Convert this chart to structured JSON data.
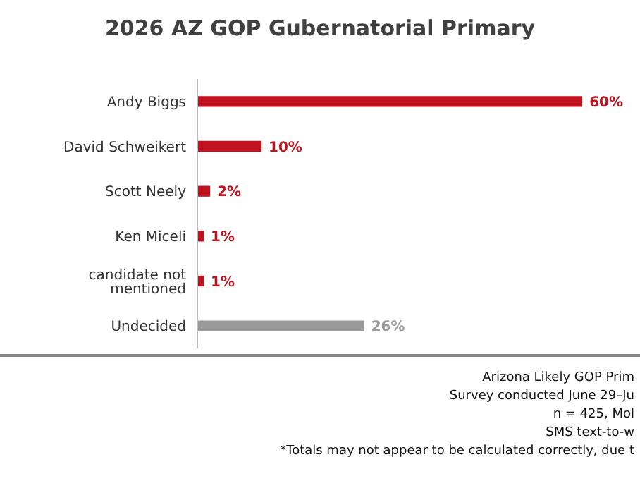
{
  "chart_data": {
    "type": "bar",
    "orientation": "horizontal",
    "title": "2026 AZ GOP Gubernatorial Primary",
    "categories": [
      "Andy Biggs",
      "David Schweikert",
      "Scott Neely",
      "Ken Miceli",
      "candidate not mentioned",
      "Undecided"
    ],
    "values": [
      60,
      10,
      2,
      1,
      1,
      26
    ],
    "colors": [
      "#c0121f",
      "#c0121f",
      "#c0121f",
      "#c0121f",
      "#c0121f",
      "#9a9a9a"
    ],
    "value_labels": [
      "60%",
      "10%",
      "2%",
      "1%",
      "1%",
      "26%"
    ],
    "annotations": [
      "Arizona Likely GOP Prim",
      "Survey conducted June 29–Ju",
      "n = 425, Mol",
      "SMS text-to-w",
      "*Totals may not appear to be calculated correctly, due t"
    ]
  }
}
